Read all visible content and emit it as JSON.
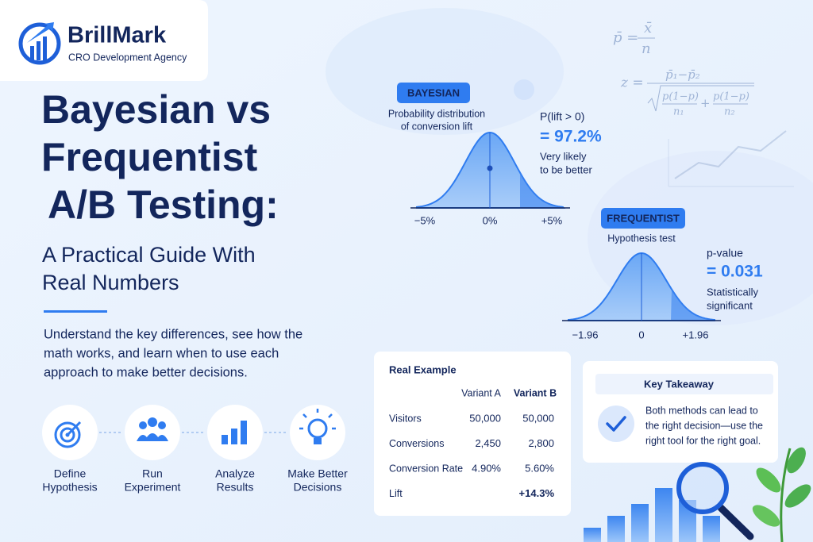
{
  "logo": {
    "name": "BrillMark",
    "tagline": "CRO Development Agency"
  },
  "headline": {
    "line1": "Bayesian vs",
    "line2": "Frequentist",
    "line3": "A/B Testing:",
    "subtitle_line1": "A Practical Guide With",
    "subtitle_line2": "Real Numbers"
  },
  "intro": [
    "Understand the key differences, see how the",
    "math works, and learn when to use each",
    "approach to make better decisions."
  ],
  "steps": [
    {
      "line1": "Define",
      "line2": "Hypothesis"
    },
    {
      "line1": "Run",
      "line2": "Experiment"
    },
    {
      "line1": "Analyze",
      "line2": "Results"
    },
    {
      "line1": "Make Better",
      "line2": "Decisions"
    }
  ],
  "formulas": {
    "mean": {
      "lhs": "p̄ =",
      "numerator": "x̄",
      "denominator": "n"
    },
    "z": {
      "lhs": "z =",
      "numerator": "p̄₁−p̄₂",
      "term1_top": "p(1−p)",
      "term1_bottom": "n₁",
      "plus": "+",
      "term2_top": "p(1−p)",
      "term2_bottom": "n₂"
    }
  },
  "bayesian": {
    "badge": "BAYESIAN",
    "caption": [
      "Probability distribution",
      "of conversion lift"
    ],
    "stat_label": "P(lift > 0)",
    "stat_value": "= 97.2%",
    "note": [
      "Very likely",
      "to be better"
    ],
    "axis_labels": [
      "−5%",
      "0%",
      "+5%"
    ]
  },
  "frequentist": {
    "badge": "FREQUENTIST",
    "caption": "Hypothesis test",
    "stat_label": "p-value",
    "stat_value": "= 0.031",
    "note": [
      "Statistically",
      "significant"
    ],
    "axis_labels": [
      "−1.96",
      "0",
      "+1.96"
    ]
  },
  "example": {
    "title": "Real Example",
    "columns": [
      "Variant A",
      "Variant B"
    ],
    "rows": [
      {
        "label": "Visitors",
        "a": "50,000",
        "b": "50,000"
      },
      {
        "label": "Conversions",
        "a": "2,450",
        "b": "2,800"
      },
      {
        "label": "Conversion Rate",
        "a": "4.90%",
        "b": "5.60%"
      },
      {
        "label": "Lift",
        "b": "+14.3%"
      }
    ]
  },
  "takeaway": {
    "title": "Key Takeaway",
    "text": [
      "Both methods can lead to",
      "the right decision—use the",
      "right tool for the right goal."
    ]
  }
}
